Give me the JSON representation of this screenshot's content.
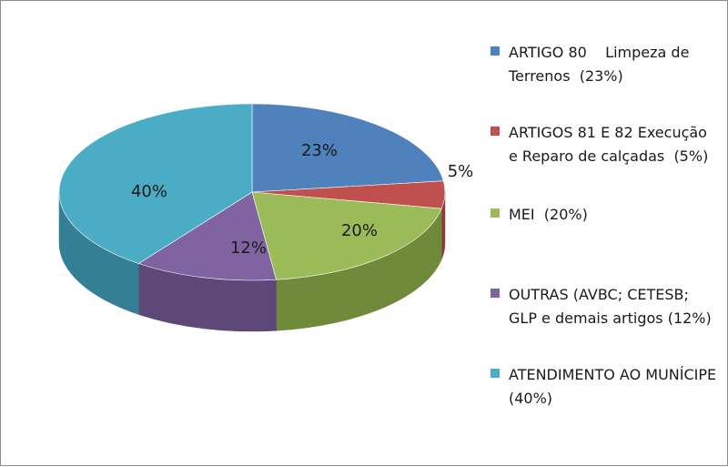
{
  "chart_data": {
    "type": "pie",
    "title": "",
    "legend_position": "right",
    "slices": [
      {
        "label": "ARTIGO 80    Limpeza de Terrenos  (23%)",
        "value": 23,
        "data_label": "23%",
        "color": "#4f81bd",
        "side_color": "#3a6091"
      },
      {
        "label": "ARTIGOS 81 E 82 Execução e Reparo de calçadas  (5%)",
        "value": 5,
        "data_label": "5%",
        "color": "#c0504d",
        "side_color": "#8e3a38"
      },
      {
        "label": "MEI  (20%)",
        "value": 20,
        "data_label": "20%",
        "color": "#9bbb59",
        "side_color": "#708a3c"
      },
      {
        "label": "OUTRAS (AVBC; CETESB; GLP e demais artigos (12%)",
        "value": 12,
        "data_label": "12%",
        "color": "#8064a2",
        "side_color": "#5d4877"
      },
      {
        "label": "ATENDIMENTO AO MUNÍCIPE  (40%)",
        "value": 40,
        "data_label": "40%",
        "color": "#4bacc6",
        "side_color": "#347f93"
      }
    ]
  }
}
